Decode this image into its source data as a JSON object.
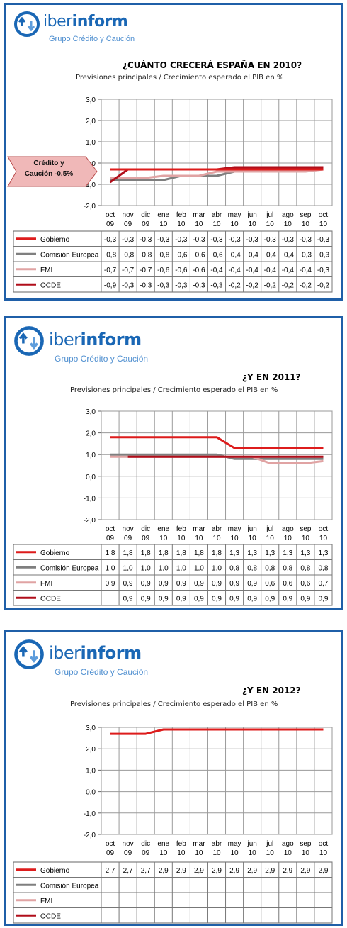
{
  "brand": {
    "name_light": "iber",
    "name_bold": "inform",
    "tagline": "Grupo Crédito y Caución",
    "color": "#1a67b5"
  },
  "series_style": [
    {
      "name": "Gobierno",
      "color": "#dd1c1c"
    },
    {
      "name": "Comisión Europea",
      "color": "#7f7f7f"
    },
    {
      "name": "FMI",
      "color": "#e0a3a3"
    },
    {
      "name": "OCDE",
      "color": "#b00e1a"
    }
  ],
  "panels": [
    {
      "title": "¿CUÁNTO CRECERÁ ESPAÑA EN 2010?",
      "subtitle": "Previsiones principales / Crecimiento esperado el PIB en %",
      "callout": {
        "line1": "Crédito y",
        "line2": "Caución -0,5%",
        "value": -0.5
      }
    },
    {
      "title": "¿Y EN 2011?",
      "subtitle": "Previsiones principales / Crecimiento esperado el PIB en %"
    },
    {
      "title": "¿Y EN 2012?",
      "subtitle": "Previsiones principales / Crecimiento esperado el PIB en %"
    }
  ],
  "chart_data": [
    {
      "type": "line",
      "title": "¿CUÁNTO CRECERÁ ESPAÑA EN 2010?",
      "subtitle": "Previsiones principales / Crecimiento esperado el PIB en %",
      "categories": [
        [
          "oct",
          "09"
        ],
        [
          "nov",
          "09"
        ],
        [
          "dic",
          "09"
        ],
        [
          "ene",
          "10"
        ],
        [
          "feb",
          "10"
        ],
        [
          "mar",
          "10"
        ],
        [
          "abr",
          "10"
        ],
        [
          "may",
          "10"
        ],
        [
          "jun",
          "10"
        ],
        [
          "jul",
          "10"
        ],
        [
          "ago",
          "10"
        ],
        [
          "sep",
          "10"
        ],
        [
          "oct",
          "10"
        ]
      ],
      "ylim": [
        -2.0,
        3.0
      ],
      "yticks": [
        "3,0",
        "2,0",
        "1,0",
        "0,0",
        "-1,0",
        "-2,0"
      ],
      "ytick_values": [
        3,
        2,
        1,
        0,
        -1,
        -2
      ],
      "grid": true,
      "series": [
        {
          "name": "Gobierno",
          "values": [
            -0.3,
            -0.3,
            -0.3,
            -0.3,
            -0.3,
            -0.3,
            -0.3,
            -0.3,
            -0.3,
            -0.3,
            -0.3,
            -0.3,
            -0.3
          ],
          "labels": [
            "-0,3",
            "-0,3",
            "-0,3",
            "-0,3",
            "-0,3",
            "-0,3",
            "-0,3",
            "-0,3",
            "-0,3",
            "-0,3",
            "-0,3",
            "-0,3",
            "-0,3"
          ]
        },
        {
          "name": "Comisión Europea",
          "values": [
            -0.8,
            -0.8,
            -0.8,
            -0.8,
            -0.6,
            -0.6,
            -0.6,
            -0.4,
            -0.4,
            -0.4,
            -0.4,
            -0.3,
            -0.3
          ],
          "labels": [
            "-0,8",
            "-0,8",
            "-0,8",
            "-0,8",
            "-0,6",
            "-0,6",
            "-0,6",
            "-0,4",
            "-0,4",
            "-0,4",
            "-0,4",
            "-0,3",
            "-0,3"
          ]
        },
        {
          "name": "FMI",
          "values": [
            -0.7,
            -0.7,
            -0.7,
            -0.6,
            -0.6,
            -0.6,
            -0.4,
            -0.4,
            -0.4,
            -0.4,
            -0.4,
            -0.4,
            -0.3
          ],
          "labels": [
            "-0,7",
            "-0,7",
            "-0,7",
            "-0,6",
            "-0,6",
            "-0,6",
            "-0,4",
            "-0,4",
            "-0,4",
            "-0,4",
            "-0,4",
            "-0,4",
            "-0,3"
          ]
        },
        {
          "name": "OCDE",
          "values": [
            -0.9,
            -0.3,
            -0.3,
            -0.3,
            -0.3,
            -0.3,
            -0.3,
            -0.2,
            -0.2,
            -0.2,
            -0.2,
            -0.2,
            -0.2
          ],
          "labels": [
            "-0,9",
            "-0,3",
            "-0,3",
            "-0,3",
            "-0,3",
            "-0,3",
            "-0,3",
            "-0,2",
            "-0,2",
            "-0,2",
            "-0,2",
            "-0,2",
            "-0,2"
          ]
        }
      ]
    },
    {
      "type": "line",
      "title": "¿Y EN 2011?",
      "subtitle": "Previsiones principales / Crecimiento esperado el PIB en %",
      "categories": [
        [
          "oct",
          "09"
        ],
        [
          "nov",
          "09"
        ],
        [
          "dic",
          "09"
        ],
        [
          "ene",
          "10"
        ],
        [
          "feb",
          "10"
        ],
        [
          "mar",
          "10"
        ],
        [
          "abr",
          "10"
        ],
        [
          "may",
          "10"
        ],
        [
          "jun",
          "10"
        ],
        [
          "jul",
          "10"
        ],
        [
          "ago",
          "10"
        ],
        [
          "sep",
          "10"
        ],
        [
          "oct",
          "10"
        ]
      ],
      "ylim": [
        -2.0,
        3.0
      ],
      "yticks": [
        "3,0",
        "2,0",
        "1,0",
        "0,0",
        "-1,0",
        "-2,0"
      ],
      "ytick_values": [
        3,
        2,
        1,
        0,
        -1,
        -2
      ],
      "grid": true,
      "series": [
        {
          "name": "Gobierno",
          "values": [
            1.8,
            1.8,
            1.8,
            1.8,
            1.8,
            1.8,
            1.8,
            1.3,
            1.3,
            1.3,
            1.3,
            1.3,
            1.3
          ],
          "labels": [
            "1,8",
            "1,8",
            "1,8",
            "1,8",
            "1,8",
            "1,8",
            "1,8",
            "1,3",
            "1,3",
            "1,3",
            "1,3",
            "1,3",
            "1,3"
          ]
        },
        {
          "name": "Comisión Europea",
          "values": [
            1.0,
            1.0,
            1.0,
            1.0,
            1.0,
            1.0,
            1.0,
            0.8,
            0.8,
            0.8,
            0.8,
            0.8,
            0.8
          ],
          "labels": [
            "1,0",
            "1,0",
            "1,0",
            "1,0",
            "1,0",
            "1,0",
            "1,0",
            "0,8",
            "0,8",
            "0,8",
            "0,8",
            "0,8",
            "0,8"
          ]
        },
        {
          "name": "FMI",
          "values": [
            0.9,
            0.9,
            0.9,
            0.9,
            0.9,
            0.9,
            0.9,
            0.9,
            0.9,
            0.6,
            0.6,
            0.6,
            0.7
          ],
          "labels": [
            "0,9",
            "0,9",
            "0,9",
            "0,9",
            "0,9",
            "0,9",
            "0,9",
            "0,9",
            "0,9",
            "0,6",
            "0,6",
            "0,6",
            "0,7"
          ]
        },
        {
          "name": "OCDE",
          "values": [
            null,
            0.9,
            0.9,
            0.9,
            0.9,
            0.9,
            0.9,
            0.9,
            0.9,
            0.9,
            0.9,
            0.9,
            0.9
          ],
          "labels": [
            "",
            "0,9",
            "0,9",
            "0,9",
            "0,9",
            "0,9",
            "0,9",
            "0,9",
            "0,9",
            "0,9",
            "0,9",
            "0,9",
            "0,9"
          ]
        }
      ]
    },
    {
      "type": "line",
      "title": "¿Y EN 2012?",
      "subtitle": "Previsiones principales / Crecimiento esperado el PIB en %",
      "categories": [
        [
          "oct",
          "09"
        ],
        [
          "nov",
          "09"
        ],
        [
          "dic",
          "09"
        ],
        [
          "ene",
          "10"
        ],
        [
          "feb",
          "10"
        ],
        [
          "mar",
          "10"
        ],
        [
          "abr",
          "10"
        ],
        [
          "may",
          "10"
        ],
        [
          "jun",
          "10"
        ],
        [
          "jul",
          "10"
        ],
        [
          "ago",
          "10"
        ],
        [
          "sep",
          "10"
        ],
        [
          "oct",
          "10"
        ]
      ],
      "ylim": [
        -2.0,
        3.0
      ],
      "yticks": [
        "3,0",
        "2,0",
        "1,0",
        "0,0",
        "-1,0",
        "-2,0"
      ],
      "ytick_values": [
        3,
        2,
        1,
        0,
        -1,
        -2
      ],
      "grid": true,
      "series": [
        {
          "name": "Gobierno",
          "values": [
            2.7,
            2.7,
            2.7,
            2.9,
            2.9,
            2.9,
            2.9,
            2.9,
            2.9,
            2.9,
            2.9,
            2.9,
            2.9
          ],
          "labels": [
            "2,7",
            "2,7",
            "2,7",
            "2,9",
            "2,9",
            "2,9",
            "2,9",
            "2,9",
            "2,9",
            "2,9",
            "2,9",
            "2,9",
            "2,9"
          ]
        },
        {
          "name": "Comisión Europea",
          "values": [
            null,
            null,
            null,
            null,
            null,
            null,
            null,
            null,
            null,
            null,
            null,
            null,
            null
          ],
          "labels": [
            "",
            "",
            "",
            "",
            "",
            "",
            "",
            "",
            "",
            "",
            "",
            "",
            ""
          ]
        },
        {
          "name": "FMI",
          "values": [
            null,
            null,
            null,
            null,
            null,
            null,
            null,
            null,
            null,
            null,
            null,
            null,
            null
          ],
          "labels": [
            "",
            "",
            "",
            "",
            "",
            "",
            "",
            "",
            "",
            "",
            "",
            "",
            ""
          ]
        },
        {
          "name": "OCDE",
          "values": [
            null,
            null,
            null,
            null,
            null,
            null,
            null,
            null,
            null,
            null,
            null,
            null,
            null
          ],
          "labels": [
            "",
            "",
            "",
            "",
            "",
            "",
            "",
            "",
            "",
            "",
            "",
            "",
            ""
          ]
        }
      ]
    }
  ]
}
